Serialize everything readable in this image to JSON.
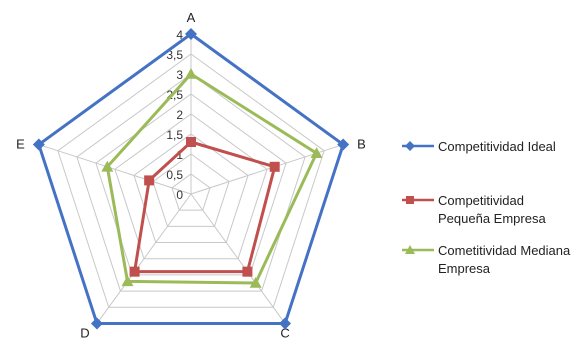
{
  "chart_data": {
    "type": "radar",
    "categories": [
      "A",
      "B",
      "C",
      "D",
      "E"
    ],
    "rlim": [
      0,
      4
    ],
    "ticks": [
      "0",
      "0,5",
      "1",
      "1,5",
      "2",
      "2,5",
      "3",
      "3,5",
      "4"
    ],
    "grid": true,
    "legend_position": "right",
    "series": [
      {
        "name": "Competitividad Ideal",
        "values": [
          4,
          4,
          4,
          4,
          4
        ],
        "color": "#4472C4",
        "marker": "diamond"
      },
      {
        "name": "Competitividad Pequeña Empresa",
        "values": [
          1.3,
          2.2,
          2.4,
          2.4,
          1.1
        ],
        "color": "#C0504D",
        "marker": "square"
      },
      {
        "name": "Cometitividad Mediana Empresa",
        "values": [
          3.0,
          3.3,
          2.75,
          2.7,
          2.2
        ],
        "color": "#9BBB59",
        "marker": "triangle"
      }
    ]
  }
}
